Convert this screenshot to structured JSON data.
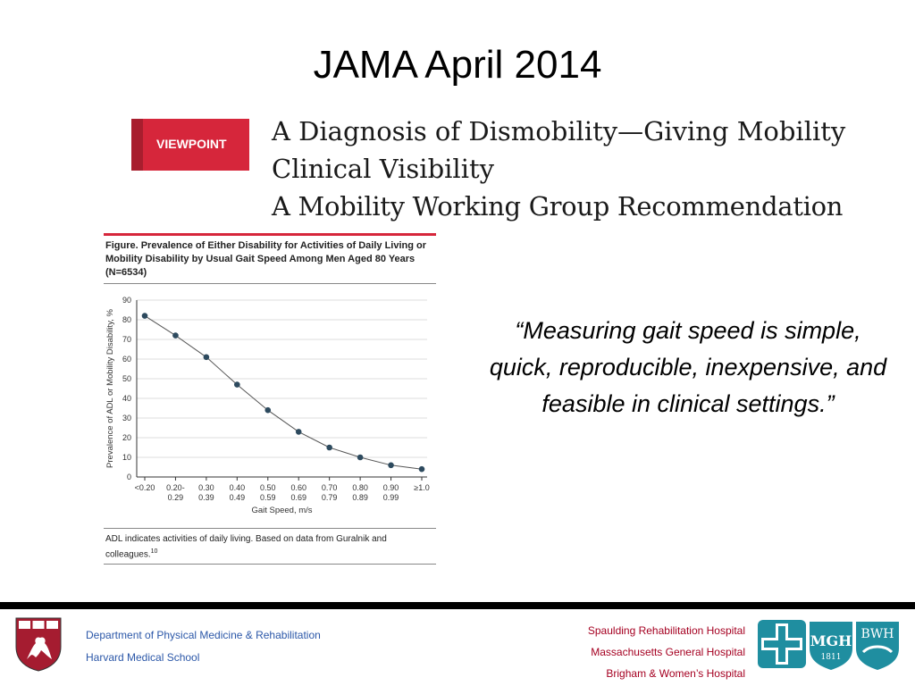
{
  "slide": {
    "title": "JAMA April 2014"
  },
  "article": {
    "badge": "VIEWPOINT",
    "title_line1": "A Diagnosis of Dismobility—Giving Mobility",
    "title_line2": "Clinical Visibility",
    "subtitle": "A Mobility Working Group Recommendation"
  },
  "figure": {
    "caption": "Figure. Prevalence of Either Disability for Activities of Daily Living or Mobility Disability by Usual Gait Speed Among Men Aged 80 Years (N=6534)",
    "note_text": "ADL indicates activities of daily living. Based on data from Guralnik and colleagues.",
    "note_ref": "10"
  },
  "chart_data": {
    "type": "line",
    "title": "",
    "xlabel": "Gait Speed, m/s",
    "ylabel": "Prevalence of ADL or Mobility Disability, %",
    "categories": [
      [
        "<0.20"
      ],
      [
        "0.20-",
        "0.29"
      ],
      [
        "0.30",
        "0.39"
      ],
      [
        "0.40",
        "0.49"
      ],
      [
        "0.50",
        "0.59"
      ],
      [
        "0.60",
        "0.69"
      ],
      [
        "0.70",
        "0.79"
      ],
      [
        "0.80",
        "0.89"
      ],
      [
        "0.90",
        "0.99"
      ],
      [
        "≥1.0"
      ]
    ],
    "values": [
      82,
      72,
      61,
      47,
      34,
      23,
      15,
      10,
      6,
      4
    ],
    "ylim": [
      0,
      90
    ],
    "yticks": [
      0,
      10,
      20,
      30,
      40,
      50,
      60,
      70,
      80,
      90
    ],
    "grid": true,
    "legend": "none",
    "colors": {
      "line": "#555555",
      "marker": "#2d4a5e",
      "grid": "#d0d0d0"
    }
  },
  "quote": {
    "open_mark": "“",
    "text": "Measuring gait speed is simple, quick, reproducible, inexpensive, and feasible in clinical settings.",
    "close_mark": "”"
  },
  "footer": {
    "dept_line1": "Department of Physical Medicine & Rehabilitation",
    "dept_line2": "Harvard Medical School",
    "hospital1": "Spaulding Rehabilitation Hospital",
    "hospital2": "Massachusetts General Hospital",
    "hospital3": "Brigham & Women’s Hospital",
    "crest_text": "VE RI TAS",
    "logo_mgh": "MGH",
    "logo_mgh_year": "1811",
    "logo_bwh": "BWH",
    "colors": {
      "dept": "#2b57a8",
      "hospital": "#a50021",
      "crest": "#a51c30",
      "teal": "#1f8ea0"
    }
  }
}
